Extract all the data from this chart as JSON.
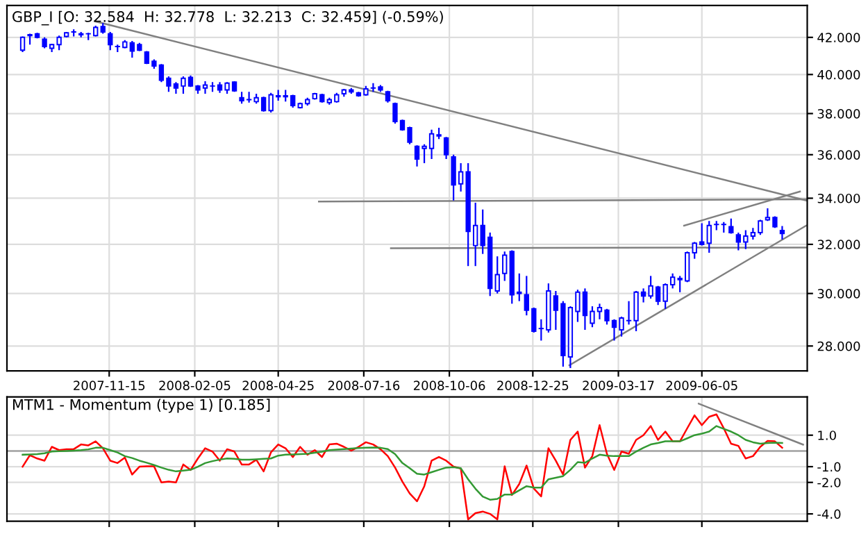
{
  "chart_data": [
    {
      "type": "candlestick",
      "title": "GBP_I [O: 32.584  H: 32.778  L: 32.213  C: 32.459] (-0.59%)",
      "color": "#0000ff",
      "log": true,
      "grid": true,
      "xlim": [
        "2007-08-09",
        "2009-09-14"
      ],
      "xticks": [
        "2007-11-15",
        "2008-02-05",
        "2008-04-25",
        "2008-07-16",
        "2008-10-06",
        "2008-12-25",
        "2009-03-17",
        "2009-06-05"
      ],
      "ylim": [
        27.1,
        43.8
      ],
      "yticks": [
        {
          "value": 28,
          "label": "28.000"
        },
        {
          "value": 30,
          "label": "30.000"
        },
        {
          "value": 32,
          "label": "32.000"
        },
        {
          "value": 34,
          "label": "34.000"
        },
        {
          "value": 36,
          "label": "36.000"
        },
        {
          "value": 38,
          "label": "38.000"
        },
        {
          "value": 40,
          "label": "40.000"
        },
        {
          "value": 42,
          "label": "42.000"
        }
      ],
      "x": [
        "2007-08-24",
        "2007-08-31",
        "2007-09-07",
        "2007-09-14",
        "2007-09-21",
        "2007-09-28",
        "2007-10-05",
        "2007-10-12",
        "2007-10-19",
        "2007-10-26",
        "2007-11-02",
        "2007-11-09",
        "2007-11-16",
        "2007-11-23",
        "2007-11-30",
        "2007-12-07",
        "2007-12-14",
        "2007-12-21",
        "2007-12-28",
        "2008-01-04",
        "2008-01-11",
        "2008-01-18",
        "2008-01-25",
        "2008-02-01",
        "2008-02-08",
        "2008-02-15",
        "2008-02-22",
        "2008-02-29",
        "2008-03-07",
        "2008-03-14",
        "2008-03-21",
        "2008-03-28",
        "2008-04-04",
        "2008-04-11",
        "2008-04-18",
        "2008-04-25",
        "2008-05-02",
        "2008-05-09",
        "2008-05-16",
        "2008-05-23",
        "2008-05-30",
        "2008-06-06",
        "2008-06-13",
        "2008-06-20",
        "2008-06-27",
        "2008-07-04",
        "2008-07-11",
        "2008-07-18",
        "2008-07-25",
        "2008-08-01",
        "2008-08-08",
        "2008-08-15",
        "2008-08-22",
        "2008-08-29",
        "2008-09-05",
        "2008-09-12",
        "2008-09-19",
        "2008-09-26",
        "2008-10-03",
        "2008-10-10",
        "2008-10-17",
        "2008-10-24",
        "2008-10-31",
        "2008-11-07",
        "2008-11-14",
        "2008-11-21",
        "2008-11-28",
        "2008-12-05",
        "2008-12-12",
        "2008-12-19",
        "2008-12-26",
        "2009-01-02",
        "2009-01-09",
        "2009-01-16",
        "2009-01-23",
        "2009-01-30",
        "2009-02-06",
        "2009-02-13",
        "2009-02-20",
        "2009-02-27",
        "2009-03-06",
        "2009-03-13",
        "2009-03-20",
        "2009-03-27",
        "2009-04-03",
        "2009-04-10",
        "2009-04-17",
        "2009-04-24",
        "2009-05-01",
        "2009-05-08",
        "2009-05-15",
        "2009-05-22",
        "2009-05-29",
        "2009-06-05",
        "2009-06-12",
        "2009-06-19",
        "2009-06-26",
        "2009-07-03",
        "2009-07-10",
        "2009-07-17",
        "2009-07-24",
        "2009-07-31",
        "2009-08-07",
        "2009-08-14",
        "2009-08-21"
      ],
      "ohlc": [
        [
          41.3,
          42.05,
          41.2,
          42.0
        ],
        [
          42.1,
          42.2,
          41.6,
          42.15
        ],
        [
          42.2,
          42.25,
          41.95,
          42.0
        ],
        [
          41.9,
          42.0,
          41.4,
          41.5
        ],
        [
          41.4,
          41.65,
          41.2,
          41.6
        ],
        [
          41.6,
          42.1,
          41.3,
          42.0
        ],
        [
          42.05,
          42.3,
          42.0,
          42.25
        ],
        [
          42.3,
          42.45,
          42.05,
          42.3
        ],
        [
          42.2,
          42.3,
          42.0,
          42.15
        ],
        [
          42.2,
          42.25,
          41.85,
          42.2
        ],
        [
          42.1,
          42.65,
          42.05,
          42.55
        ],
        [
          42.6,
          42.8,
          42.2,
          42.3
        ],
        [
          42.2,
          42.3,
          41.3,
          41.6
        ],
        [
          41.5,
          41.6,
          41.2,
          41.5
        ],
        [
          41.45,
          41.85,
          41.4,
          41.75
        ],
        [
          41.7,
          41.8,
          40.9,
          41.25
        ],
        [
          41.6,
          41.7,
          41.25,
          41.3
        ],
        [
          41.2,
          41.25,
          40.55,
          40.6
        ],
        [
          40.7,
          40.8,
          40.3,
          40.45
        ],
        [
          40.5,
          40.55,
          39.6,
          39.7
        ],
        [
          39.8,
          39.9,
          39.1,
          39.4
        ],
        [
          39.5,
          39.6,
          39.0,
          39.3
        ],
        [
          39.4,
          39.9,
          39.0,
          39.8
        ],
        [
          39.85,
          39.95,
          39.35,
          39.4
        ],
        [
          39.4,
          39.45,
          39.0,
          39.2
        ],
        [
          39.3,
          39.65,
          39.0,
          39.45
        ],
        [
          39.4,
          39.6,
          39.1,
          39.4
        ],
        [
          39.45,
          39.6,
          39.05,
          39.2
        ],
        [
          39.2,
          39.6,
          39.0,
          39.55
        ],
        [
          39.6,
          39.65,
          39.1,
          39.15
        ],
        [
          38.8,
          39.1,
          38.5,
          38.65
        ],
        [
          38.7,
          39.1,
          38.55,
          38.7
        ],
        [
          38.6,
          39.0,
          38.5,
          38.8
        ],
        [
          38.8,
          38.85,
          38.1,
          38.15
        ],
        [
          38.15,
          39.05,
          38.05,
          38.95
        ],
        [
          38.85,
          39.2,
          38.65,
          38.9
        ],
        [
          38.9,
          39.2,
          38.6,
          38.85
        ],
        [
          38.9,
          38.95,
          38.3,
          38.4
        ],
        [
          38.3,
          38.55,
          38.25,
          38.5
        ],
        [
          38.5,
          38.8,
          38.4,
          38.7
        ],
        [
          38.75,
          39.05,
          38.7,
          39.0
        ],
        [
          38.95,
          39.0,
          38.55,
          38.6
        ],
        [
          38.55,
          38.8,
          38.45,
          38.7
        ],
        [
          38.6,
          39.05,
          38.55,
          38.95
        ],
        [
          39.0,
          39.25,
          38.85,
          39.2
        ],
        [
          39.2,
          39.3,
          39.0,
          39.1
        ],
        [
          39.05,
          39.1,
          38.85,
          38.9
        ],
        [
          38.95,
          39.4,
          38.9,
          39.25
        ],
        [
          39.3,
          39.55,
          39.1,
          39.3
        ],
        [
          39.35,
          39.45,
          39.1,
          39.2
        ],
        [
          39.1,
          39.15,
          38.55,
          38.65
        ],
        [
          38.5,
          38.55,
          37.5,
          37.6
        ],
        [
          37.65,
          37.7,
          37.15,
          37.2
        ],
        [
          37.3,
          37.35,
          36.5,
          36.6
        ],
        [
          36.4,
          36.45,
          35.45,
          35.8
        ],
        [
          36.3,
          36.5,
          35.6,
          36.4
        ],
        [
          36.3,
          37.2,
          35.8,
          37.0
        ],
        [
          36.9,
          37.3,
          36.75,
          36.95
        ],
        [
          36.8,
          36.85,
          35.8,
          36.0
        ],
        [
          35.9,
          36.0,
          33.9,
          34.6
        ],
        [
          34.65,
          35.6,
          34.3,
          35.2
        ],
        [
          35.2,
          35.6,
          31.1,
          32.55
        ],
        [
          31.95,
          33.8,
          31.1,
          32.8
        ],
        [
          32.8,
          33.5,
          31.6,
          31.95
        ],
        [
          32.3,
          32.5,
          29.9,
          30.2
        ],
        [
          30.1,
          31.5,
          30.0,
          30.75
        ],
        [
          30.8,
          31.7,
          30.5,
          31.55
        ],
        [
          31.7,
          31.75,
          29.6,
          29.95
        ],
        [
          30.05,
          30.8,
          29.7,
          30.0
        ],
        [
          29.95,
          30.7,
          29.15,
          29.35
        ],
        [
          29.4,
          29.45,
          28.5,
          28.55
        ],
        [
          28.65,
          29.0,
          28.2,
          28.65
        ],
        [
          28.6,
          30.4,
          28.5,
          30.1
        ],
        [
          29.9,
          30.1,
          28.6,
          29.35
        ],
        [
          29.6,
          29.7,
          27.25,
          27.65
        ],
        [
          27.6,
          29.5,
          27.2,
          29.45
        ],
        [
          29.3,
          30.15,
          28.9,
          30.05
        ],
        [
          30.05,
          30.2,
          28.6,
          29.15
        ],
        [
          28.85,
          29.5,
          28.7,
          29.3
        ],
        [
          29.3,
          29.6,
          29.0,
          29.45
        ],
        [
          29.35,
          29.4,
          28.8,
          28.95
        ],
        [
          28.95,
          29.0,
          28.2,
          28.7
        ],
        [
          28.6,
          29.1,
          28.35,
          29.05
        ],
        [
          28.95,
          29.7,
          28.8,
          28.95
        ],
        [
          28.95,
          30.1,
          28.55,
          30.05
        ],
        [
          30.05,
          30.2,
          29.65,
          29.9
        ],
        [
          29.9,
          30.7,
          29.8,
          30.3
        ],
        [
          30.25,
          30.3,
          29.55,
          29.7
        ],
        [
          29.7,
          30.4,
          29.4,
          30.35
        ],
        [
          30.35,
          30.8,
          30.2,
          30.65
        ],
        [
          30.6,
          30.7,
          30.05,
          30.55
        ],
        [
          30.5,
          31.7,
          30.45,
          31.65
        ],
        [
          31.65,
          32.1,
          31.4,
          32.05
        ],
        [
          32.1,
          32.9,
          31.95,
          32.0
        ],
        [
          32.05,
          33.0,
          31.65,
          32.8
        ],
        [
          32.85,
          33.0,
          32.6,
          32.85
        ],
        [
          32.85,
          32.95,
          32.5,
          32.85
        ],
        [
          32.75,
          33.1,
          32.45,
          32.5
        ],
        [
          32.4,
          32.5,
          31.75,
          32.1
        ],
        [
          32.1,
          32.6,
          31.8,
          32.35
        ],
        [
          32.35,
          32.7,
          32.2,
          32.5
        ],
        [
          32.5,
          33.05,
          32.4,
          33.0
        ],
        [
          33.05,
          33.55,
          33.0,
          33.15
        ],
        [
          33.15,
          33.2,
          32.7,
          32.75
        ],
        [
          32.584,
          32.778,
          32.213,
          32.459
        ]
      ],
      "series": [
        {
          "type": "line",
          "color": "#808080",
          "x": [
            "2007-11-01",
            "2009-09-13"
          ],
          "values": [
            42.9,
            33.9
          ]
        },
        {
          "type": "line",
          "color": "#808080",
          "x": [
            "2008-06-03",
            "2009-09-13"
          ],
          "values": [
            33.85,
            33.95
          ]
        },
        {
          "type": "line",
          "color": "#808080",
          "x": [
            "2008-08-11",
            "2009-09-13"
          ],
          "values": [
            31.84,
            31.87
          ]
        },
        {
          "type": "line",
          "color": "#808080",
          "x": [
            "2009-01-29",
            "2009-09-13"
          ],
          "values": [
            27.3,
            32.8
          ]
        },
        {
          "type": "line",
          "color": "#808080",
          "x": [
            "2009-05-19",
            "2009-09-07"
          ],
          "values": [
            32.8,
            34.3
          ]
        }
      ]
    },
    {
      "type": "line",
      "title": "MTM1 - Momentum (type 1) [0.185]",
      "grid": true,
      "tick_labels": "y",
      "xlim": [
        "2007-08-09",
        "2009-09-14"
      ],
      "xticks": [
        "2007-11-15",
        "2008-02-05",
        "2008-04-25",
        "2008-07-16",
        "2008-10-06",
        "2008-12-25",
        "2009-03-17",
        "2009-06-05"
      ],
      "ylim": [
        -4.47,
        3.43
      ],
      "yticks": [
        {
          "value": -4,
          "label": "-4.0"
        },
        {
          "value": -2,
          "label": "-2.0"
        },
        {
          "value": -1,
          "label": "-1.0"
        },
        {
          "value": 1,
          "label": "1.0"
        }
      ],
      "ref_lines": [
        {
          "axis": "y",
          "value": 0,
          "color": "#a0a0a0"
        }
      ],
      "x": [
        "2007-08-24",
        "2007-08-31",
        "2007-09-07",
        "2007-09-14",
        "2007-09-21",
        "2007-09-28",
        "2007-10-05",
        "2007-10-12",
        "2007-10-19",
        "2007-10-26",
        "2007-11-02",
        "2007-11-09",
        "2007-11-16",
        "2007-11-23",
        "2007-11-30",
        "2007-12-07",
        "2007-12-14",
        "2007-12-21",
        "2007-12-28",
        "2008-01-04",
        "2008-01-11",
        "2008-01-18",
        "2008-01-25",
        "2008-02-01",
        "2008-02-08",
        "2008-02-15",
        "2008-02-22",
        "2008-02-29",
        "2008-03-07",
        "2008-03-14",
        "2008-03-21",
        "2008-03-28",
        "2008-04-04",
        "2008-04-11",
        "2008-04-18",
        "2008-04-25",
        "2008-05-02",
        "2008-05-09",
        "2008-05-16",
        "2008-05-23",
        "2008-05-30",
        "2008-06-06",
        "2008-06-13",
        "2008-06-20",
        "2008-06-27",
        "2008-07-04",
        "2008-07-11",
        "2008-07-18",
        "2008-07-25",
        "2008-08-01",
        "2008-08-08",
        "2008-08-15",
        "2008-08-22",
        "2008-08-29",
        "2008-09-05",
        "2008-09-12",
        "2008-09-19",
        "2008-09-26",
        "2008-10-03",
        "2008-10-10",
        "2008-10-17",
        "2008-10-24",
        "2008-10-31",
        "2008-11-07",
        "2008-11-14",
        "2008-11-21",
        "2008-11-28",
        "2008-12-05",
        "2008-12-12",
        "2008-12-19",
        "2008-12-26",
        "2009-01-02",
        "2009-01-09",
        "2009-01-16",
        "2009-01-23",
        "2009-01-30",
        "2009-02-06",
        "2009-02-13",
        "2009-02-20",
        "2009-02-27",
        "2009-03-06",
        "2009-03-13",
        "2009-03-20",
        "2009-03-27",
        "2009-04-03",
        "2009-04-10",
        "2009-04-17",
        "2009-04-24",
        "2009-05-01",
        "2009-05-08",
        "2009-05-15",
        "2009-05-22",
        "2009-05-29",
        "2009-06-05",
        "2009-06-12",
        "2009-06-19",
        "2009-06-26",
        "2009-07-03",
        "2009-07-10",
        "2009-07-17",
        "2009-07-24",
        "2009-07-31",
        "2009-08-07",
        "2009-08-14",
        "2009-08-21"
      ],
      "series": [
        {
          "color": "#ff0000",
          "values": [
            -1.0,
            -0.27,
            -0.48,
            -0.62,
            0.26,
            0.05,
            0.11,
            0.11,
            0.41,
            0.35,
            0.61,
            0.17,
            -0.62,
            -0.77,
            -0.42,
            -1.5,
            -1.0,
            -0.98,
            -0.98,
            -2.0,
            -1.95,
            -2.0,
            -0.86,
            -1.21,
            -0.48,
            0.17,
            -0.04,
            -0.62,
            0.11,
            -0.04,
            -0.86,
            -0.86,
            -0.56,
            -1.3,
            -0.09,
            0.41,
            0.17,
            -0.39,
            0.26,
            -0.24,
            0.05,
            -0.39,
            0.41,
            0.46,
            0.26,
            0.02,
            0.26,
            0.55,
            0.41,
            0.11,
            -0.33,
            -1.06,
            -1.95,
            -2.7,
            -3.2,
            -2.24,
            -0.62,
            -0.39,
            -0.62,
            -1.0,
            -1.12,
            -4.35,
            -3.95,
            -3.85,
            -4.0,
            -4.35,
            -0.98,
            -2.8,
            -2.1,
            -0.93,
            -2.39,
            -2.89,
            0.17,
            -0.62,
            -1.5,
            0.7,
            1.23,
            -1.06,
            -0.33,
            1.64,
            -0.18,
            -1.21,
            -0.04,
            -0.18,
            0.7,
            1.0,
            1.58,
            0.7,
            1.23,
            0.61,
            0.61,
            1.44,
            2.26,
            1.64,
            2.17,
            2.32,
            1.44,
            0.46,
            0.32,
            -0.48,
            -0.33,
            0.26,
            0.64,
            0.61,
            0.2
          ]
        },
        {
          "color": "#339933",
          "values": [
            -0.24,
            -0.22,
            -0.2,
            -0.15,
            -0.04,
            -0.02,
            0.0,
            0.02,
            0.05,
            0.1,
            0.2,
            0.2,
            0.05,
            -0.1,
            -0.33,
            -0.45,
            -0.62,
            -0.75,
            -0.9,
            -1.06,
            -1.2,
            -1.3,
            -1.25,
            -1.2,
            -1.0,
            -0.77,
            -0.65,
            -0.55,
            -0.48,
            -0.5,
            -0.56,
            -0.56,
            -0.53,
            -0.5,
            -0.48,
            -0.3,
            -0.24,
            -0.22,
            -0.2,
            -0.18,
            -0.12,
            -0.05,
            0.05,
            0.08,
            0.12,
            0.15,
            0.18,
            0.2,
            0.22,
            0.2,
            0.12,
            -0.2,
            -0.77,
            -1.1,
            -1.45,
            -1.5,
            -1.35,
            -1.2,
            -1.06,
            -1.03,
            -1.1,
            -1.8,
            -2.4,
            -2.9,
            -3.1,
            -3.05,
            -2.77,
            -2.77,
            -2.5,
            -2.24,
            -2.33,
            -2.33,
            -1.8,
            -1.7,
            -1.6,
            -1.2,
            -0.71,
            -0.75,
            -0.48,
            -0.24,
            -0.3,
            -0.33,
            -0.33,
            -0.33,
            -0.04,
            0.2,
            0.41,
            0.5,
            0.61,
            0.61,
            0.61,
            0.8,
            1.0,
            1.1,
            1.23,
            1.58,
            1.4,
            1.23,
            1.0,
            0.7,
            0.55,
            0.46,
            0.5,
            0.52,
            0.5
          ]
        },
        {
          "color": "#808080",
          "x": [
            "2009-06-02",
            "2009-09-10"
          ],
          "values": [
            3.0,
            0.4
          ]
        }
      ]
    }
  ]
}
